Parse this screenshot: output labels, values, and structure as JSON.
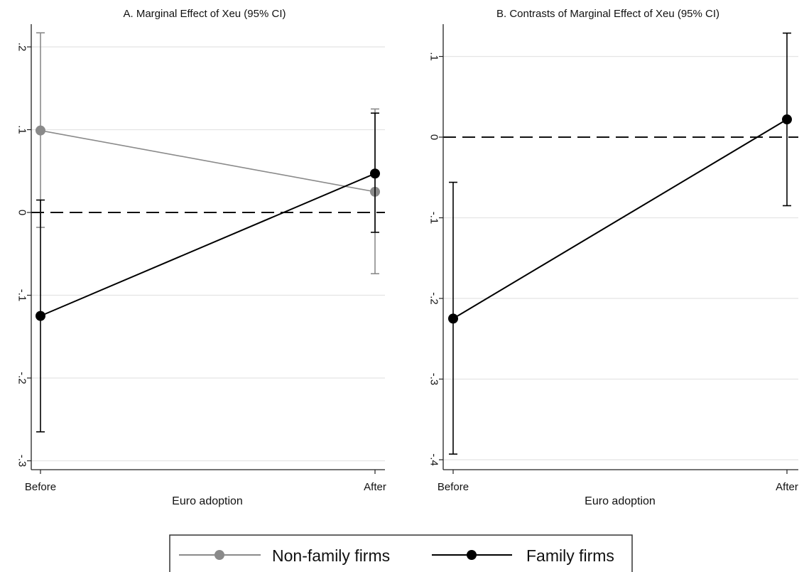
{
  "chart_data": [
    {
      "type": "line",
      "title": "A. Marginal Effect of Xeu (95% CI)",
      "xlabel": "Euro adoption",
      "ylabel": "",
      "categories": [
        "Before",
        "After"
      ],
      "ylim": [
        -0.3,
        0.23
      ],
      "yticks": [
        -0.3,
        -0.2,
        -0.1,
        0,
        0.1,
        0.2
      ],
      "ytick_labels": [
        "-.3",
        "-.2",
        "-.1",
        "0",
        ".1",
        ".2"
      ],
      "reference_line_y": 0,
      "grid": true,
      "series": [
        {
          "name": "Non-family firms",
          "color": "#8a8a8a",
          "values": [
            0.099,
            0.025
          ],
          "ci_low": [
            -0.018,
            -0.074
          ],
          "ci_high": [
            0.217,
            0.125
          ]
        },
        {
          "name": "Family firms",
          "color": "#000000",
          "values": [
            -0.125,
            0.047
          ],
          "ci_low": [
            -0.265,
            -0.024
          ],
          "ci_high": [
            0.015,
            0.12
          ]
        }
      ]
    },
    {
      "type": "line",
      "title": "B. Contrasts of Marginal Effect of Xeu (95% CI)",
      "xlabel": "Euro adoption",
      "ylabel": "",
      "categories": [
        "Before",
        "After"
      ],
      "ylim": [
        -0.4,
        0.14
      ],
      "yticks": [
        -0.4,
        -0.3,
        -0.2,
        -0.1,
        0,
        0.1
      ],
      "ytick_labels": [
        "-.4",
        "-.3",
        "-.2",
        "-.1",
        "0",
        ".1"
      ],
      "reference_line_y": 0,
      "grid": true,
      "series": [
        {
          "name": "",
          "color": "#000000",
          "values": [
            -0.225,
            0.022
          ],
          "ci_low": [
            -0.393,
            -0.085
          ],
          "ci_high": [
            -0.056,
            0.129
          ]
        }
      ]
    }
  ],
  "legend": {
    "placement": "bottom",
    "items": [
      {
        "label": "Non-family firms",
        "color": "#8a8a8a"
      },
      {
        "label": "Family firms",
        "color": "#000000"
      }
    ]
  }
}
